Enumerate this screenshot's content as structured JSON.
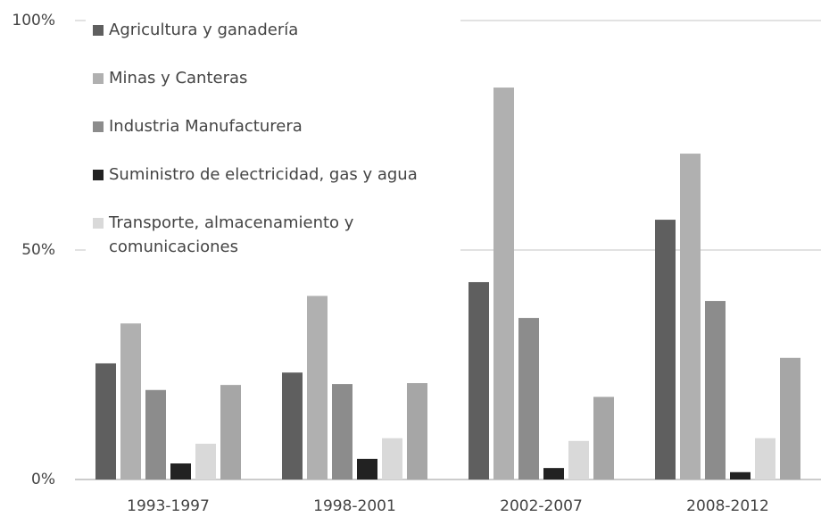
{
  "chart_data": {
    "type": "bar",
    "categories": [
      "1993-1997",
      "1998-2001",
      "2002-2007",
      "2008-2012"
    ],
    "series": [
      {
        "name": "Agricultura y ganadería",
        "color": "#5f5f5f",
        "values": [
          25.3,
          23.3,
          43,
          56.6
        ]
      },
      {
        "name": "Minas y Canteras",
        "color": "#b0b0b0",
        "values": [
          34,
          40,
          85.4,
          71
        ]
      },
      {
        "name": "Industria Manufacturera",
        "color": "#8c8c8c",
        "values": [
          19.5,
          20.8,
          35.2,
          38.9
        ]
      },
      {
        "name": "Suministro de electricidad, gas y agua",
        "color": "#222222",
        "values": [
          3.5,
          4.5,
          2.5,
          1.6
        ]
      },
      {
        "name": "Transporte, almacenamiento y comunicaciones",
        "color": "#d9d9d9",
        "values": [
          7.8,
          9,
          8.4,
          9
        ]
      },
      {
        "color": "#a6a6a6",
        "values": [
          20.6,
          21,
          18,
          26.5
        ]
      }
    ],
    "ylim": [
      0,
      100
    ],
    "yticks": [
      {
        "value": 0,
        "label": "0%"
      },
      {
        "value": 50,
        "label": "50%"
      },
      {
        "value": 100,
        "label": "100%"
      }
    ],
    "grid": true
  }
}
